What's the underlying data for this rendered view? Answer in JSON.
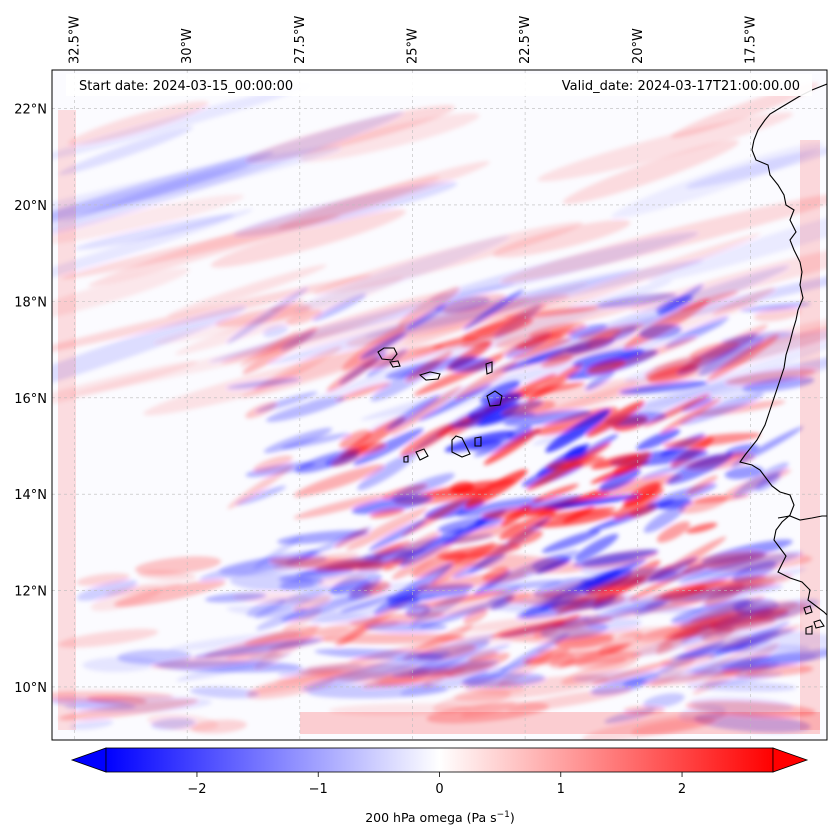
{
  "map": {
    "start_date_text": "Start date: 2024-03-15_00:00:00",
    "valid_date_text": "Valid_date: 2024-03-17T21:00:00.00",
    "lon_ticks": [
      {
        "value": -32.5,
        "label": "32.5°W"
      },
      {
        "value": -30.0,
        "label": "30°W"
      },
      {
        "value": -27.5,
        "label": "27.5°W"
      },
      {
        "value": -25.0,
        "label": "25°W"
      },
      {
        "value": -22.5,
        "label": "22.5°W"
      },
      {
        "value": -20.0,
        "label": "20°W"
      },
      {
        "value": -17.5,
        "label": "17.5°W"
      }
    ],
    "lat_ticks": [
      {
        "value": 10,
        "label": "10°N"
      },
      {
        "value": 12,
        "label": "12°N"
      },
      {
        "value": 14,
        "label": "14°N"
      },
      {
        "value": 16,
        "label": "16°N"
      },
      {
        "value": 18,
        "label": "18°N"
      },
      {
        "value": 20,
        "label": "20°N"
      },
      {
        "value": 22,
        "label": "22°N"
      }
    ],
    "lon_range": [
      -33.0,
      -15.8
    ],
    "lat_range": [
      8.9,
      22.8
    ],
    "gridlines": true,
    "colors": {
      "negative": "#0000ff",
      "positive": "#ff0000",
      "neutral": "#ffffff",
      "coast": "#000000"
    }
  },
  "colorbar": {
    "label_prefix": "200 hPa omega (Pa s",
    "label_exp": "−1",
    "label_suffix": ")",
    "range": [
      -2.75,
      2.75
    ],
    "ticks": [
      {
        "value": -2,
        "label": "−2"
      },
      {
        "value": -1,
        "label": "−1"
      },
      {
        "value": 0,
        "label": "0"
      },
      {
        "value": 1,
        "label": "1"
      },
      {
        "value": 2,
        "label": "2"
      }
    ],
    "extend": "both"
  }
}
